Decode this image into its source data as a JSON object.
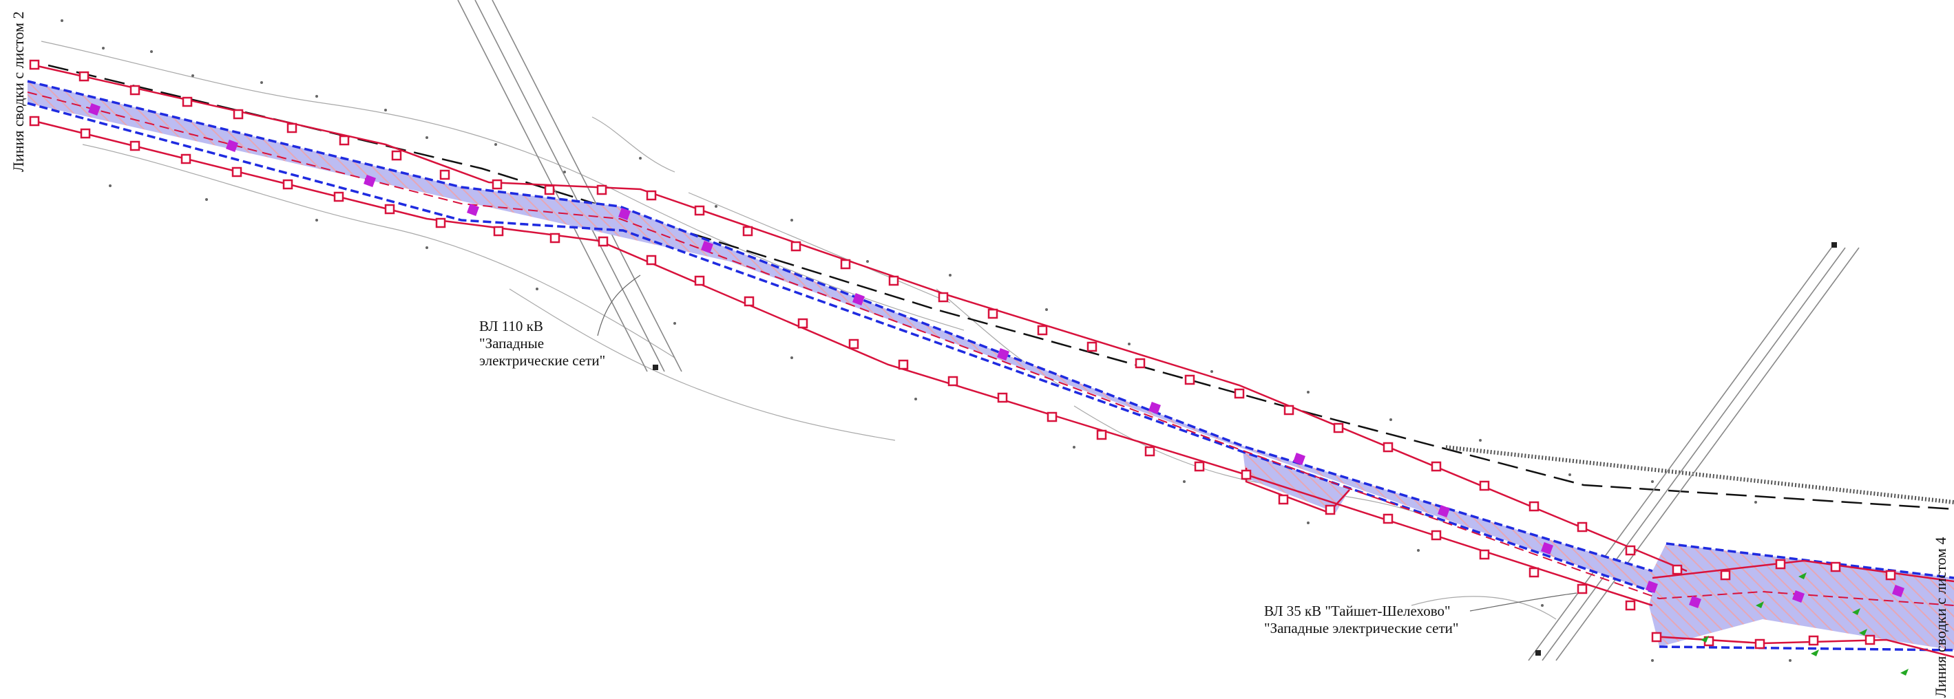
{
  "sheet_links": {
    "left": "Линия сводки с листом 2",
    "right": "Линия сводки с листом 4"
  },
  "power_lines": [
    {
      "name": "ВЛ 110 кВ",
      "owner_line1": "\"Западные",
      "owner_line2": "электрические сети\""
    },
    {
      "name": "ВЛ 35 кВ \"Тайшет-Шелехово\"",
      "owner": "\"Западные электрические сети\""
    }
  ],
  "colors": {
    "corridor_fill": "#b8b8f0",
    "corridor_outline": "#1f2be0",
    "boundary_line": "#d8123c",
    "hatch": "#e0a0b0",
    "pipe_marker": "#c01fd8",
    "vegetation": "#23a823",
    "topo_lines": "#9a9a9a"
  },
  "icons": [
    "boundary-marker-icon",
    "pipe-marker-icon",
    "tree-icon",
    "tower-icon"
  ]
}
